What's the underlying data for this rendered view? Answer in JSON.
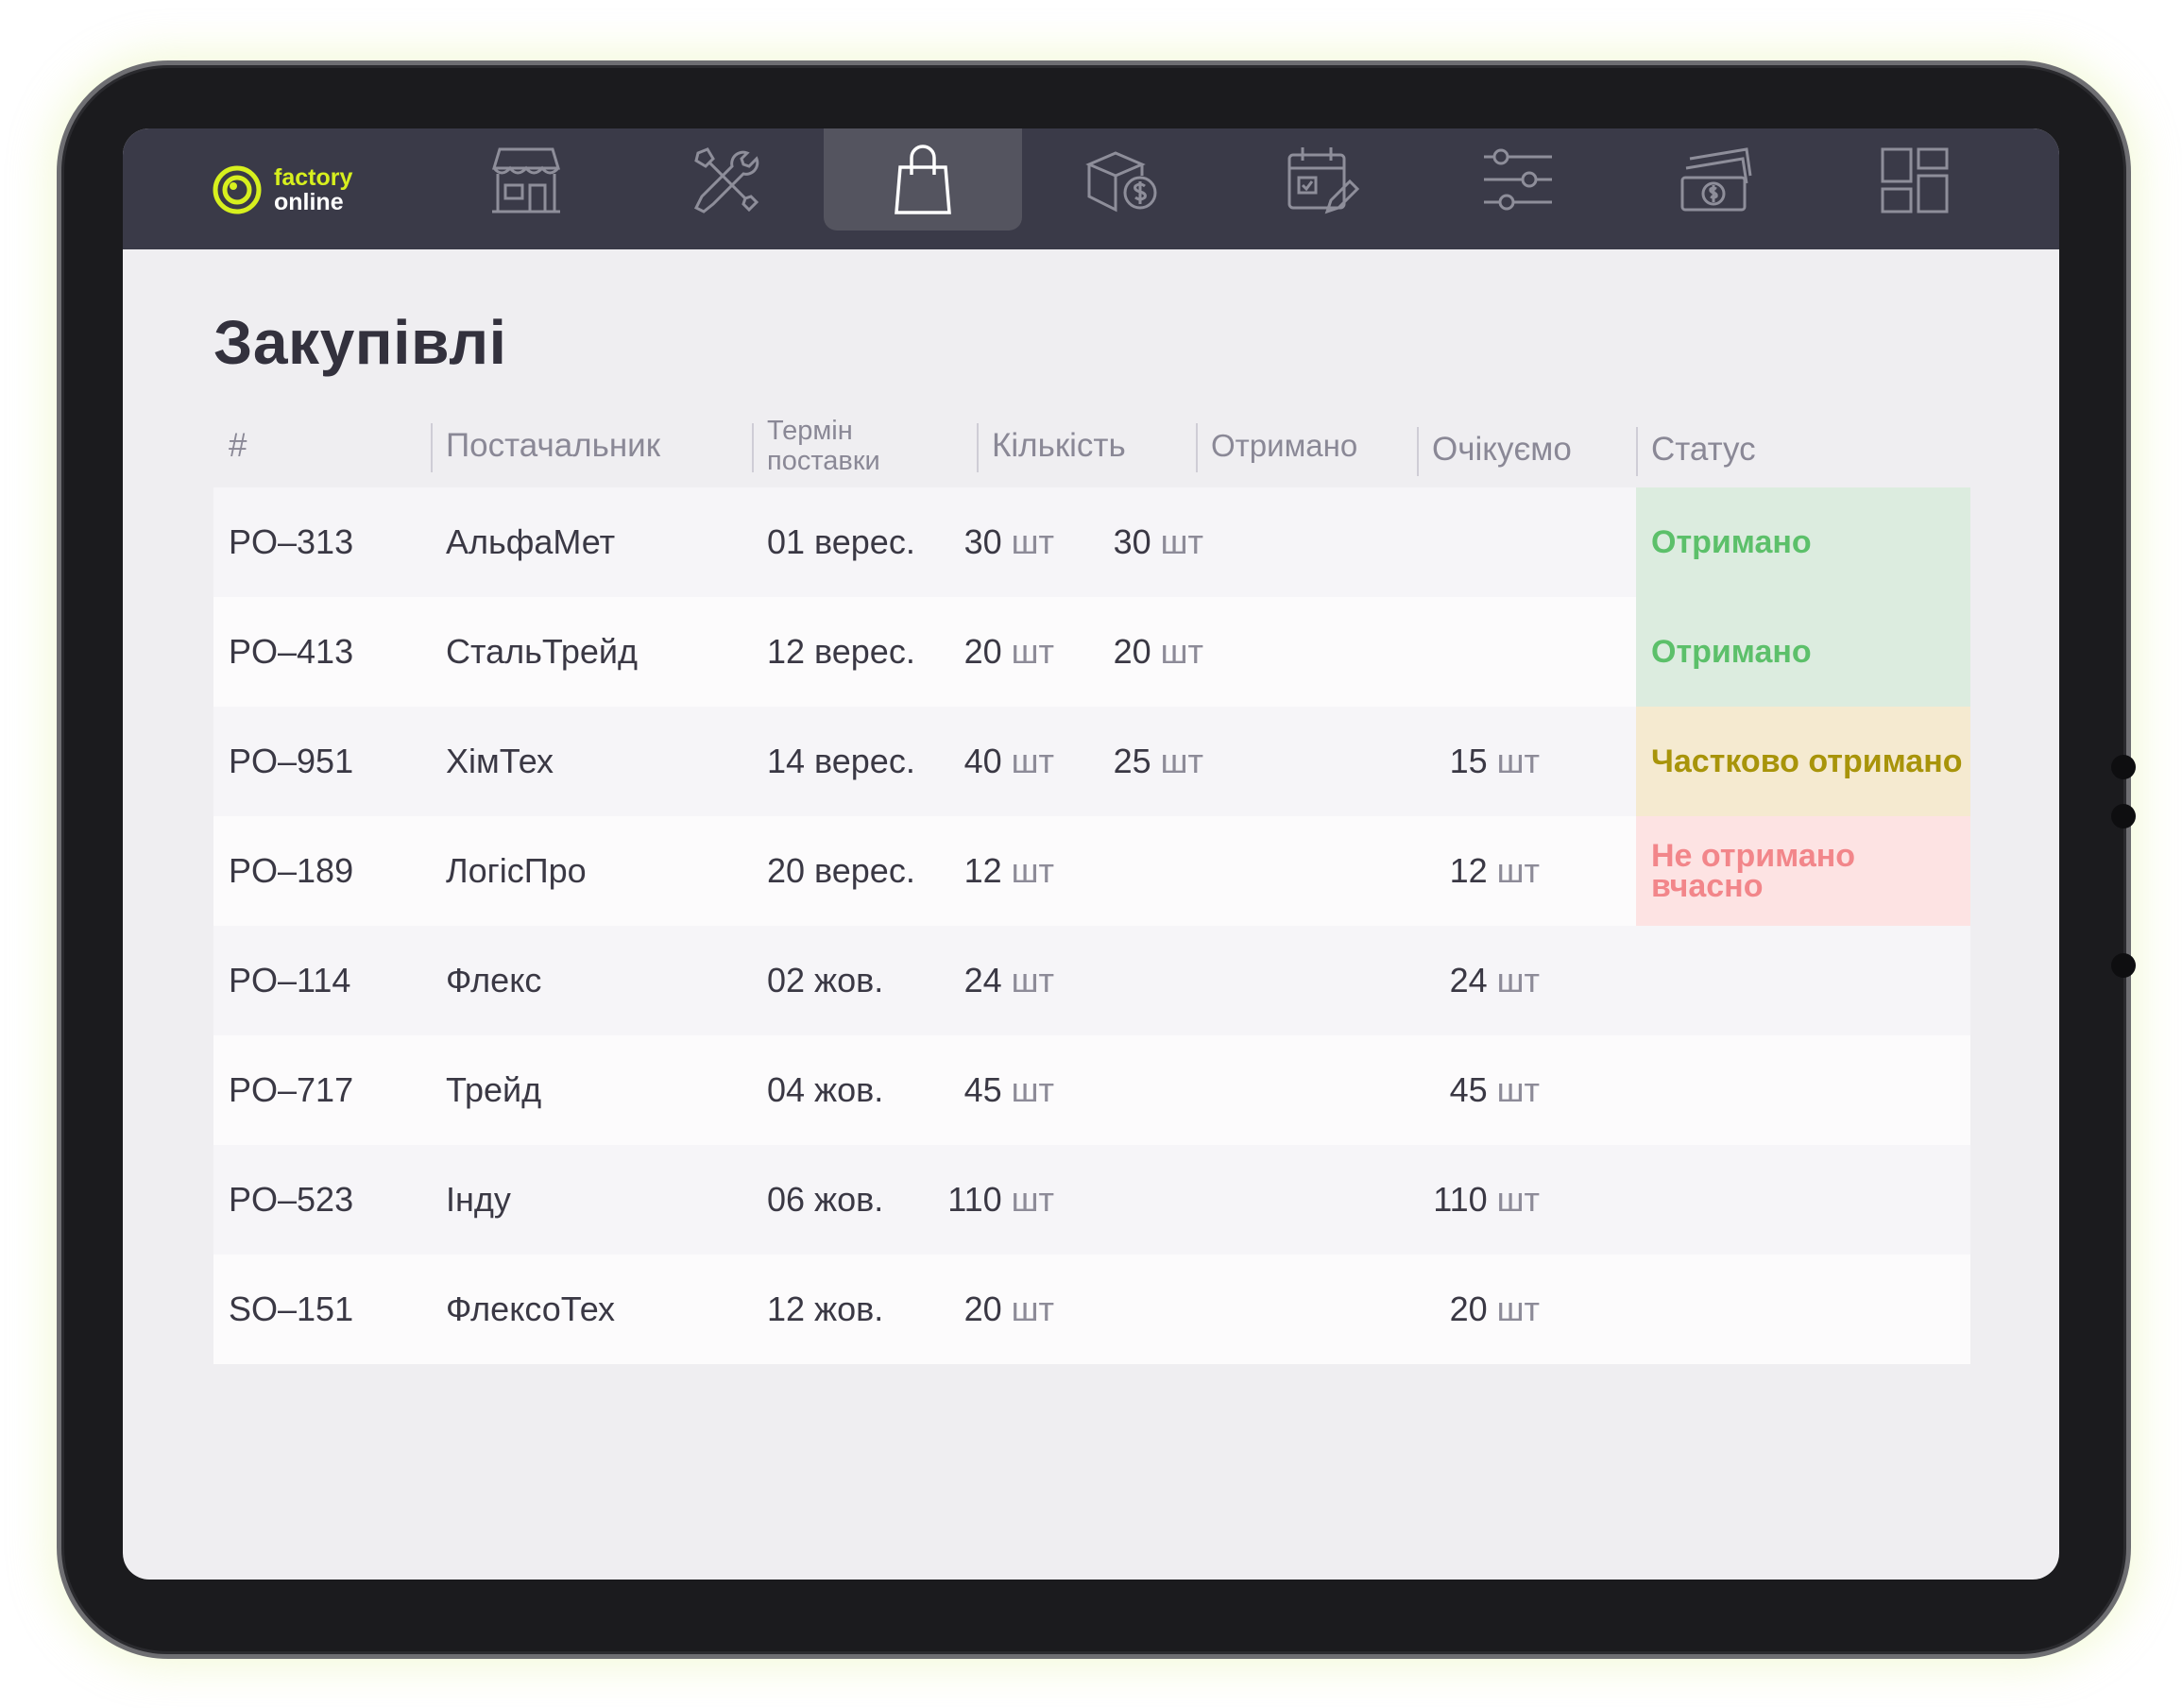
{
  "app": {
    "logo_line1": "factory",
    "logo_line2": "online",
    "colors": {
      "accent": "#d7f01e",
      "nav_bg": "#3a3a48",
      "nav_active": "#54545f"
    }
  },
  "nav": {
    "items": [
      {
        "icon": "store-icon"
      },
      {
        "icon": "tools-icon"
      },
      {
        "icon": "shopping-bag-icon",
        "active": true
      },
      {
        "icon": "box-dollar-icon"
      },
      {
        "icon": "calendar-edit-icon"
      },
      {
        "icon": "sliders-icon"
      },
      {
        "icon": "money-stack-icon"
      },
      {
        "icon": "dashboard-grid-icon"
      }
    ]
  },
  "page": {
    "title": "Закупівлі"
  },
  "table": {
    "headers": {
      "num": "#",
      "supplier": "Постачальник",
      "term_line1": "Термін",
      "term_line2": "поставки",
      "qty": "Кількість",
      "received": "Отримано",
      "expected": "Очікуємо",
      "status": "Статус"
    },
    "unit": "шт",
    "rows": [
      {
        "id": "PO–313",
        "supplier": "АльфаМет",
        "date": "01 верес.",
        "qty": "30",
        "received": "30",
        "expected": "",
        "status": "Отримано",
        "status_type": "received"
      },
      {
        "id": "PO–413",
        "supplier": "СтальТрейд",
        "date": "12 верес.",
        "qty": "20",
        "received": "20",
        "expected": "",
        "status": "Отримано",
        "status_type": "received"
      },
      {
        "id": "PO–951",
        "supplier": "ХімТех",
        "date": "14 верес.",
        "qty": "40",
        "received": "25",
        "expected": "15",
        "status": "Частково отримано",
        "status_type": "partial"
      },
      {
        "id": "PO–189",
        "supplier": "ЛогісПро",
        "date": "20 верес.",
        "qty": "12",
        "received": "",
        "expected": "12",
        "status": "Не отримано вчасно",
        "status_type": "late"
      },
      {
        "id": "PO–114",
        "supplier": "Флекс",
        "date": "02 жов.",
        "qty": "24",
        "received": "",
        "expected": "24",
        "status": "",
        "status_type": ""
      },
      {
        "id": "PO–717",
        "supplier": "Трейд",
        "date": "04 жов.",
        "qty": "45",
        "received": "",
        "expected": "45",
        "status": "",
        "status_type": ""
      },
      {
        "id": "PO–523",
        "supplier": "Інду",
        "date": "06 жов.",
        "qty": "110",
        "received": "",
        "expected": "110",
        "status": "",
        "status_type": ""
      },
      {
        "id": "SO–151",
        "supplier": "ФлексоТех",
        "date": "12 жов.",
        "qty": "20",
        "received": "",
        "expected": "20",
        "status": "",
        "status_type": ""
      }
    ]
  }
}
